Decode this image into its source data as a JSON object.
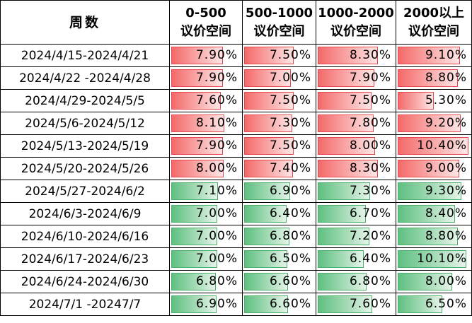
{
  "header": {
    "week_label": "周数",
    "columns": [
      {
        "range": "0-500",
        "sub": "议价空间"
      },
      {
        "range": "500-1000",
        "sub": "议价空间"
      },
      {
        "range": "1000-2000",
        "sub": "议价空间"
      },
      {
        "range": "2000以上",
        "sub": "议价空间"
      }
    ]
  },
  "colors": {
    "red_bar": "#f46a6a",
    "green_bar": "#5fc081"
  },
  "bar_max_percent": 11.0,
  "rows": [
    {
      "week": "2024/4/15-2024/4/21",
      "color": "red",
      "values": [
        "7.90%",
        "7.50%",
        "8.30%",
        "9.10%"
      ]
    },
    {
      "week": "2024/4/22 -2024/4/28",
      "color": "red",
      "values": [
        "7.90%",
        "7.00%",
        "7.90%",
        "8.80%"
      ]
    },
    {
      "week": "2024/4/29-2024/5/5",
      "color": "red",
      "values": [
        "7.60%",
        "7.50%",
        "7.50%",
        "5.30%"
      ]
    },
    {
      "week": "2024/5/6-2024/5/12",
      "color": "red",
      "values": [
        "8.10%",
        "7.30%",
        "7.80%",
        "9.20%"
      ]
    },
    {
      "week": "2024/5/13-2024/5/19",
      "color": "red",
      "values": [
        "7.90%",
        "7.50%",
        "8.00%",
        "10.40%"
      ]
    },
    {
      "week": "2024/5/20-2024/5/26",
      "color": "red",
      "values": [
        "8.00%",
        "7.40%",
        "8.30%",
        "9.00%"
      ]
    },
    {
      "week": "2024/5/27-2024/6/2",
      "color": "green",
      "values": [
        "7.10%",
        "6.90%",
        "7.30%",
        "9.30%"
      ]
    },
    {
      "week": "2024/6/3-2024/6/9",
      "color": "green",
      "values": [
        "7.00%",
        "6.40%",
        "6.70%",
        "8.40%"
      ]
    },
    {
      "week": "2024/6/10-2024/6/16",
      "color": "green",
      "values": [
        "7.00%",
        "6.80%",
        "7.20%",
        "8.80%"
      ]
    },
    {
      "week": "2024/6/17-2024/6/23",
      "color": "green",
      "values": [
        "7.00%",
        "6.50%",
        "6.40%",
        "10.10%"
      ]
    },
    {
      "week": "2024/6/24-2024/6/30",
      "color": "green",
      "values": [
        "6.80%",
        "6.60%",
        "6.80%",
        "8.00%"
      ]
    },
    {
      "week": "2024/7/1 -20247/7",
      "color": "green",
      "values": [
        "6.90%",
        "6.60%",
        "7.60%",
        "6.50%"
      ]
    }
  ]
}
